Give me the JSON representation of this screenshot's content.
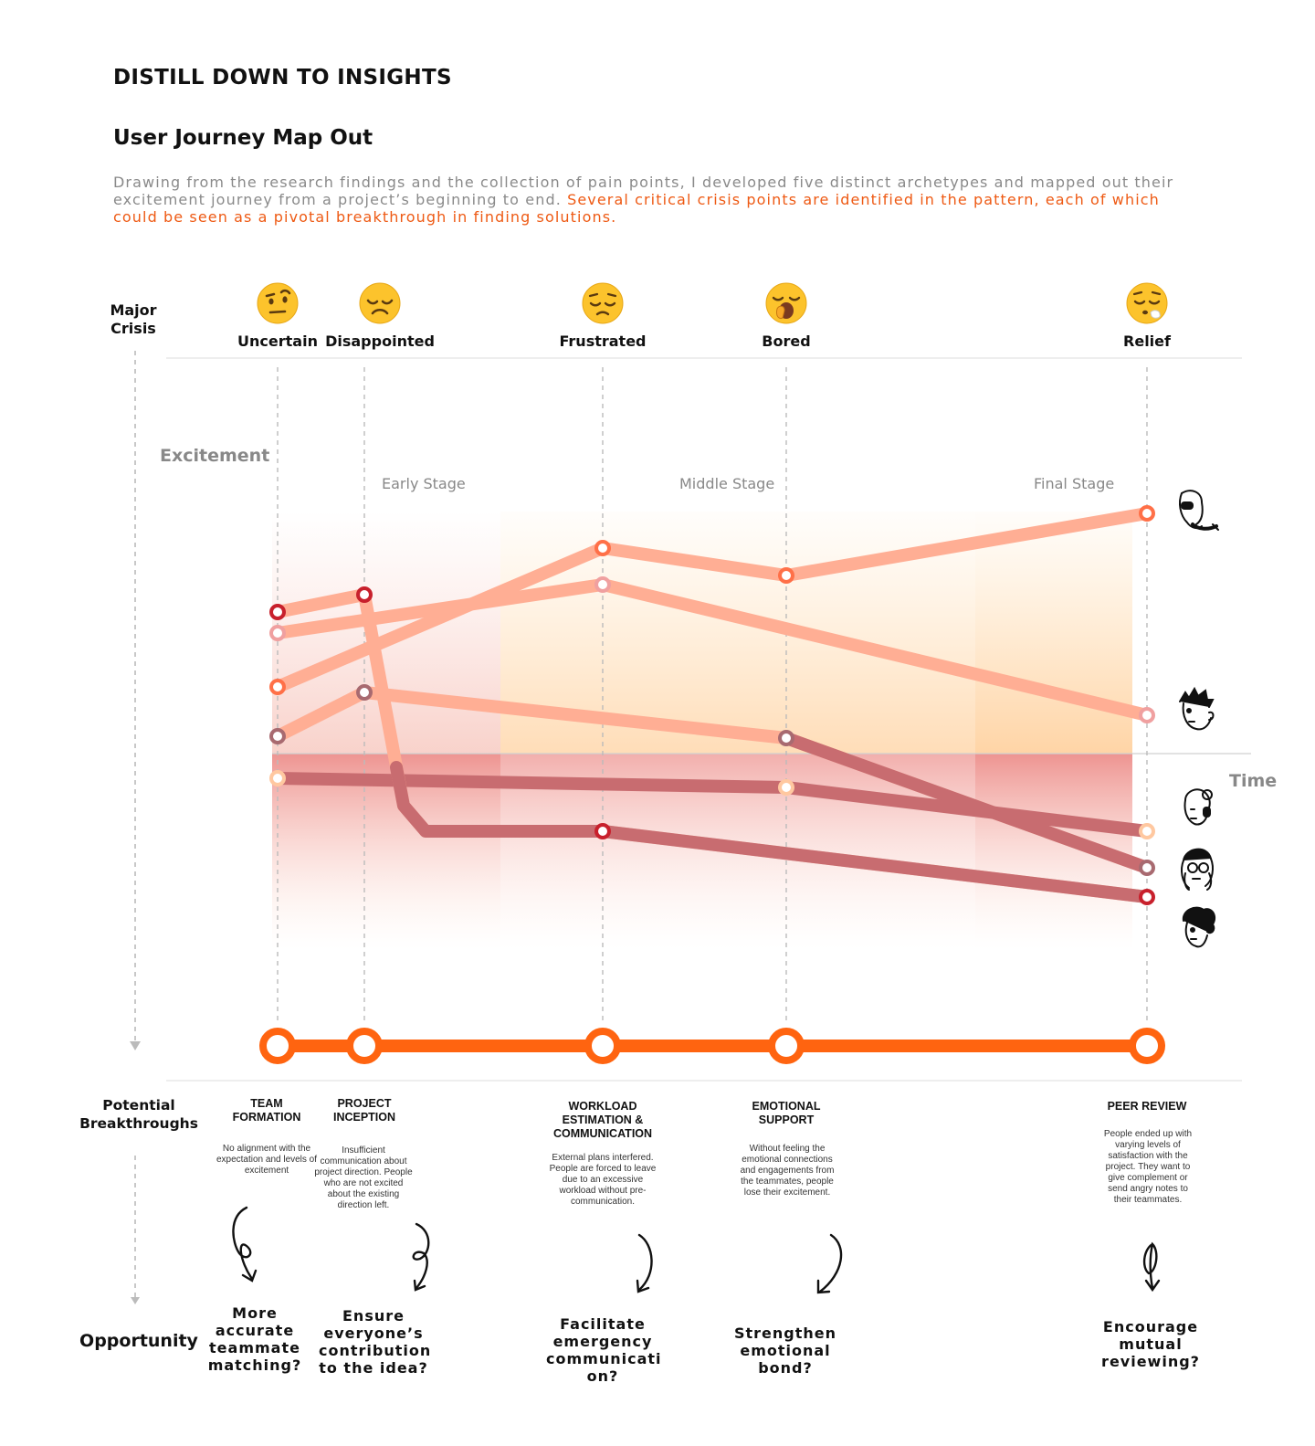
{
  "header": {
    "section_title": "DISTILL DOWN TO INSIGHTS",
    "title": "User Journey Map Out",
    "intro_plain": "Drawing from the research findings and the collection of pain points, I developed five distinct archetypes and mapped out their excitement journey from a project’s beginning to end. ",
    "intro_highlight": "Several critical crisis points are identified in the pattern, each of which could be seen as a pivotal breakthrough in finding solutions."
  },
  "labels": {
    "major_crisis": "Major\nCrisis",
    "excitement": "Excitement",
    "time": "Time",
    "potential_breakthroughs": "Potential\nBreakthroughs",
    "opportunity": "Opportunity"
  },
  "stages": [
    "Early Stage",
    "Middle Stage",
    "Final Stage"
  ],
  "emotions": [
    {
      "label": "Uncertain",
      "icon": "raised-eyebrow-face-icon"
    },
    {
      "label": "Disappointed",
      "icon": "disappointed-face-icon"
    },
    {
      "label": "Frustrated",
      "icon": "pensive-face-icon"
    },
    {
      "label": "Bored",
      "icon": "yawning-face-icon"
    },
    {
      "label": "Relief",
      "icon": "relieved-sigh-face-icon"
    }
  ],
  "colors": {
    "accent": "#ff6410",
    "line_light": "#ffae94",
    "line_dark": "#c86c70",
    "dot_red": "#c8202c",
    "dot_pink": "#f0a0a0",
    "dot_orange": "#ff7048",
    "dot_mauve": "#a86a70",
    "dot_peach": "#ffc8a0"
  },
  "breakthroughs": [
    {
      "title": "TEAM\nFORMATION",
      "desc": "No alignment with the expectation and levels of excitement",
      "opportunity": "More accurate teammate matching?"
    },
    {
      "title": "PROJECT\nINCEPTION",
      "desc": "Insufficient communication about project direction. People who are not excited about the existing direction left.",
      "opportunity": "Ensure everyone’s contribution to the idea?"
    },
    {
      "title": "WORKLOAD\nESTIMATION &\nCOMMUNICATION",
      "desc": "External plans interfered. People are forced to leave due to an excessive workload without pre-communication.",
      "opportunity": "Facilitate emergency communicati on?"
    },
    {
      "title": "EMOTIONAL\nSUPPORT",
      "desc": "Without feeling the emotional connections and engagements from the teammates, people lose their excitement.",
      "opportunity": "Strengthen emotional bond?"
    },
    {
      "title": "PEER REVIEW",
      "desc": "People ended up with varying levels of satisfaction with the project. They want to give complement or send angry notes to their teammates.",
      "opportunity": "Encourage mutual reviewing?"
    }
  ],
  "archetypes": [
    {
      "icon": "archetype-sunglasses-avatar-icon"
    },
    {
      "icon": "archetype-spiky-hair-avatar-icon"
    },
    {
      "icon": "archetype-bun-headphones-avatar-icon"
    },
    {
      "icon": "archetype-cap-glasses-avatar-icon"
    },
    {
      "icon": "archetype-curly-hair-avatar-icon"
    }
  ]
}
